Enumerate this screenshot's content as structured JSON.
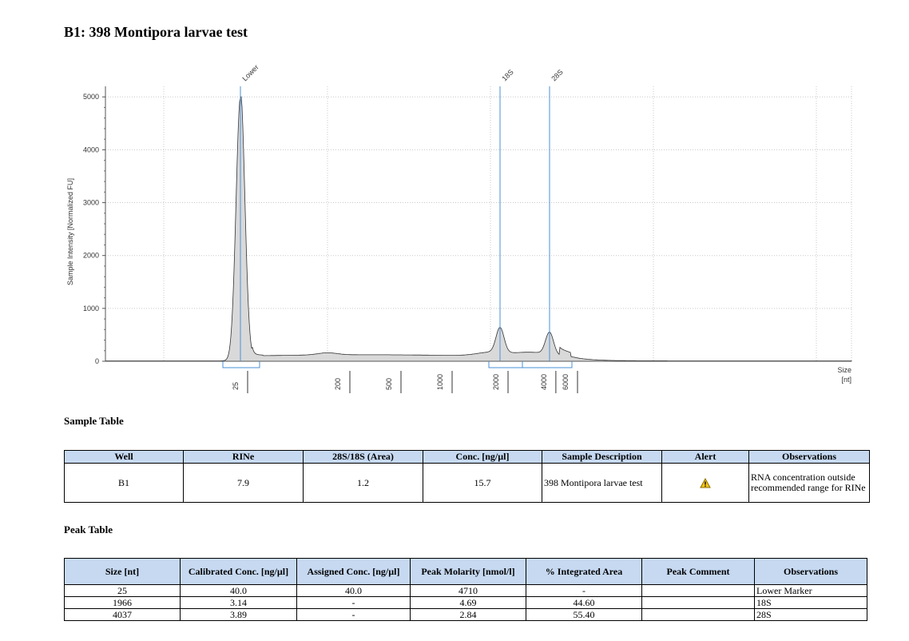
{
  "page": {
    "title": "B1: 398 Montipora larvae test"
  },
  "colors": {
    "accent": "#4a90d9",
    "fill": "#d9d9d9",
    "header_bg": "#c6d9f1",
    "alert": "#f5c518"
  },
  "chart_data": {
    "type": "area",
    "ylabel": "Sample Intensity [Normalized FU]",
    "xlabel": "Size\n[nt]",
    "xlabel_lines": [
      "Size",
      "[nt]"
    ],
    "ylim": [
      0,
      5000
    ],
    "yticks": [
      0,
      1000,
      2000,
      3000,
      4000,
      5000
    ],
    "xtick_labels": [
      "25",
      "200",
      "500",
      "1000",
      "2000",
      "4000",
      "6000"
    ],
    "grid": true,
    "peak_markers": [
      {
        "label": "Lower",
        "size_nt": 25
      },
      {
        "label": "18S",
        "size_nt": 1966
      },
      {
        "label": "28S",
        "size_nt": 4037
      }
    ],
    "trace": {
      "x_nt": [
        25,
        200,
        500,
        1000,
        1966,
        3000,
        4037,
        6000
      ],
      "y_fu": [
        4990,
        180,
        110,
        140,
        600,
        180,
        590,
        25
      ]
    }
  },
  "sample_table": {
    "title": "Sample Table",
    "headers": [
      "Well",
      "RINe",
      "28S/18S (Area)",
      "Conc. [ng/µl]",
      "Sample Description",
      "Alert",
      "Observations"
    ],
    "row": {
      "well": "B1",
      "rine": "7.9",
      "ratio": "1.2",
      "conc": "15.7",
      "description": "398 Montipora larvae test",
      "alert_icon": "warning-icon",
      "observations": "RNA concentration outside recommended range for RINe"
    }
  },
  "peak_table": {
    "title": "Peak Table",
    "headers": [
      "Size [nt]",
      "Calibrated Conc. [ng/µl]",
      "Assigned Conc. [ng/µl]",
      "Peak Molarity [nmol/l]",
      "% Integrated Area",
      "Peak Comment",
      "Observations"
    ],
    "rows": [
      [
        "25",
        "40.0",
        "40.0",
        "4710",
        "-",
        "",
        "Lower Marker"
      ],
      [
        "1966",
        "3.14",
        "-",
        "4.69",
        "44.60",
        "",
        "18S"
      ],
      [
        "4037",
        "3.89",
        "-",
        "2.84",
        "55.40",
        "",
        "28S"
      ]
    ]
  }
}
